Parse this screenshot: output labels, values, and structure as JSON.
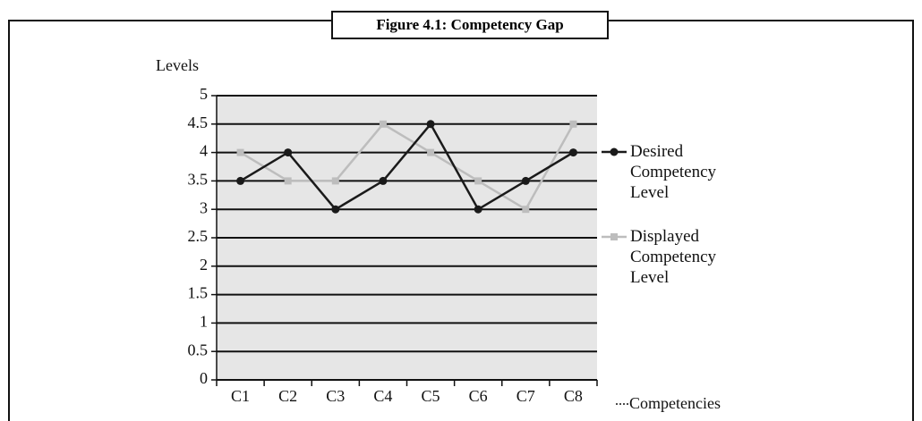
{
  "chart_data": {
    "type": "line",
    "title": "Figure 4.1: Competency Gap",
    "y_label": "Levels",
    "x_label": "Competencies",
    "categories": [
      "C1",
      "C2",
      "C3",
      "C4",
      "C5",
      "C6",
      "C7",
      "C8"
    ],
    "series": [
      {
        "name": "Desired Competency Level",
        "color": "#1a1a1a",
        "marker": "circle",
        "values": [
          3.5,
          4,
          3,
          3.5,
          4.5,
          3,
          3.5,
          4
        ]
      },
      {
        "name": "Displayed Competency Level",
        "color": "#bdbdbd",
        "marker": "square",
        "values": [
          4,
          3.5,
          3.5,
          4.5,
          4,
          3.5,
          3,
          4.5
        ]
      }
    ],
    "ylim": [
      0,
      5
    ],
    "yticks": [
      0,
      0.5,
      1,
      1.5,
      2,
      2.5,
      3,
      3.5,
      4,
      4.5,
      5
    ],
    "grid": true,
    "legend": "right"
  }
}
